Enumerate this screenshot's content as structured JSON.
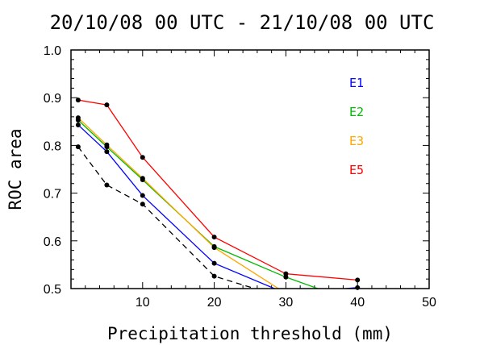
{
  "chart_data": {
    "type": "line",
    "title": "20/10/08 00 UTC - 21/10/08 00 UTC",
    "xlabel": "Precipitation threshold (mm)",
    "ylabel": "ROC area",
    "xlim": [
      0,
      50
    ],
    "ylim": [
      0.5,
      1.0
    ],
    "xticks": [
      10,
      20,
      30,
      40,
      50
    ],
    "yticks": [
      "0.5",
      "0.6",
      "0.7",
      "0.8",
      "0.9",
      "1.0"
    ],
    "x": [
      1,
      5,
      10,
      20,
      30,
      40
    ],
    "series": [
      {
        "name": "E1",
        "color": "#0000ff",
        "values": [
          0.843,
          0.787,
          0.695,
          0.553,
          0.49,
          0.502
        ]
      },
      {
        "name": "E2",
        "color": "#00bb00",
        "values": [
          0.853,
          0.797,
          0.728,
          0.588,
          0.524,
          0.47
        ]
      },
      {
        "name": "E3",
        "color": "#ffa500",
        "values": [
          0.858,
          0.801,
          0.731,
          0.586,
          0.49,
          0.47
        ]
      },
      {
        "name": "E5",
        "color": "#ff0000",
        "values": [
          0.895,
          0.885,
          0.775,
          0.608,
          0.531,
          0.518
        ]
      },
      {
        "name": "",
        "color": "#000000",
        "dashed": true,
        "values": [
          0.797,
          0.717,
          0.677,
          0.526,
          0.48,
          0.46
        ]
      }
    ],
    "legend_placement": "top-right",
    "grid": false
  }
}
